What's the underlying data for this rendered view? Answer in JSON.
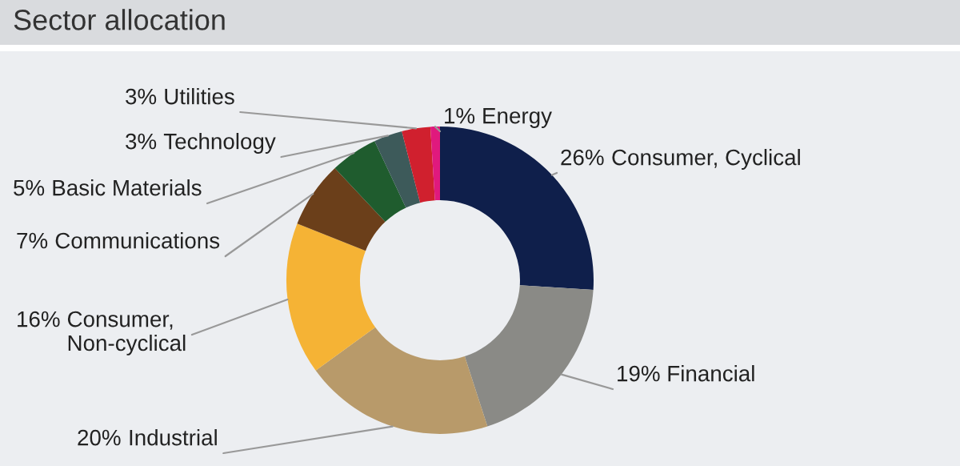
{
  "chart_data": {
    "type": "donut",
    "title": "Sector allocation",
    "categories": [
      "Consumer, Cyclical",
      "Financial",
      "Industrial",
      "Consumer,\nNon-cyclical",
      "Communications",
      "Basic Materials",
      "Technology",
      "Utilities",
      "Energy"
    ],
    "values": [
      26,
      19,
      20,
      16,
      7,
      5,
      3,
      3,
      1
    ],
    "colors": [
      "#0f1f4b",
      "#8a8a86",
      "#b89a6a",
      "#f5b335",
      "#6b3f1a",
      "#1f5c2e",
      "#3d5a5a",
      "#d0202e",
      "#e0197d"
    ],
    "value_labels": [
      "26%",
      "19%",
      "20%",
      "16%",
      "7%",
      "5%",
      "3%",
      "3%",
      "1%"
    ],
    "legend": false
  }
}
